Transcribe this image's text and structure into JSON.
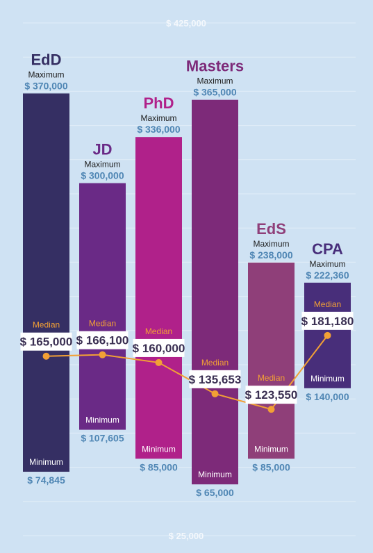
{
  "chart_data": {
    "type": "bar",
    "subtype": "floating-range-with-median-line",
    "categories": [
      "EdD",
      "JD",
      "PhD",
      "Masters",
      "EdS",
      "CPA"
    ],
    "series": [
      {
        "name": "Maximum",
        "values": [
          370000,
          300000,
          336000,
          365000,
          238000,
          222360
        ],
        "labels": [
          "$ 370,000",
          "$ 300,000",
          "$ 336,000",
          "$ 365,000",
          "$ 238,000",
          "$ 222,360"
        ]
      },
      {
        "name": "Minimum",
        "values": [
          74845,
          107605,
          85000,
          65000,
          85000,
          140000
        ],
        "labels": [
          "$ 74,845",
          "$ 107,605",
          "$ 85,000",
          "$ 65,000",
          "$ 85,000",
          "$ 140,000"
        ]
      },
      {
        "name": "Median",
        "values": [
          165000,
          166100,
          160000,
          135653,
          123550,
          181180
        ],
        "labels": [
          "$ 165,000",
          "$ 166,100",
          "$ 160,000",
          "$ 135,653",
          "$ 123,550",
          "$ 181,180"
        ]
      }
    ],
    "text": {
      "maximum": "Maximum",
      "minimum": "Minimum",
      "median": "Median"
    },
    "y_ticks": [
      {
        "value": 425000,
        "label": "$ 425,000"
      },
      {
        "value": 25000,
        "label": "$ 25,000"
      }
    ],
    "ylim": [
      25000,
      425000
    ],
    "grid": true,
    "colors": {
      "background": "#cfe2f3",
      "bars": [
        "#352f63",
        "#6a2a86",
        "#b0218a",
        "#7d2a79",
        "#8f3f79",
        "#482e7a"
      ],
      "titles": [
        "#352f63",
        "#6a2a86",
        "#b0218a",
        "#7d2a79",
        "#8f3f79",
        "#482e7a"
      ],
      "median_line": "#f2a035",
      "value_text": "#4f86b4"
    }
  }
}
